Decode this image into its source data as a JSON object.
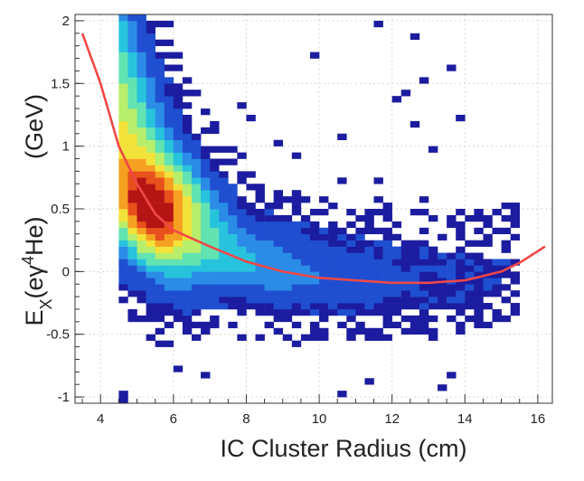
{
  "chart_data": {
    "type": "heatmap",
    "xlabel": "IC Cluster Radius  (cm)",
    "ylabel_parts": {
      "main": "E",
      "sub": "X",
      "paren": "(eγ",
      "sup": "4",
      "tail": "He)"
    },
    "ylabel_unit": "(GeV)",
    "xlim": [
      3.3,
      16.4
    ],
    "ylim": [
      -1.05,
      2.05
    ],
    "x_ticks": [
      4,
      6,
      8,
      10,
      12,
      14,
      16
    ],
    "x_tick_labels": [
      "4",
      "6",
      "8",
      "10",
      "12",
      "14",
      "16"
    ],
    "y_ticks": [
      -1,
      -0.5,
      0,
      0.5,
      1,
      1.5,
      2
    ],
    "y_tick_labels": [
      "-1",
      "-0.5",
      "0",
      "0.5",
      "1",
      "1.5",
      "2"
    ],
    "grid": true,
    "bin_width": 0.25,
    "bin_height": 0.05,
    "fit_curve": {
      "color": "#f04848",
      "points": [
        [
          3.5,
          1.9
        ],
        [
          4,
          1.5
        ],
        [
          4.5,
          1.0
        ],
        [
          5,
          0.7
        ],
        [
          5.5,
          0.46
        ],
        [
          6,
          0.33
        ],
        [
          7,
          0.2
        ],
        [
          8,
          0.08
        ],
        [
          9,
          0.0
        ],
        [
          10,
          -0.05
        ],
        [
          11,
          -0.07
        ],
        [
          12,
          -0.09
        ],
        [
          13,
          -0.09
        ],
        [
          14,
          -0.07
        ],
        [
          15,
          0.0
        ],
        [
          15.5,
          0.07
        ],
        [
          16.2,
          0.2
        ]
      ]
    },
    "colorscale": [
      "#1c1ca0",
      "#1f4fd0",
      "#2a8ce6",
      "#27c3dd",
      "#62e3b2",
      "#b7ee6b",
      "#f2e23a",
      "#f6a022",
      "#e8501c",
      "#b51414"
    ],
    "density_model": {
      "trend_point_count": 17,
      "peak_location": [
        5.4,
        0.5
      ],
      "points_note": "weights per ridge point along the band"
    }
  }
}
